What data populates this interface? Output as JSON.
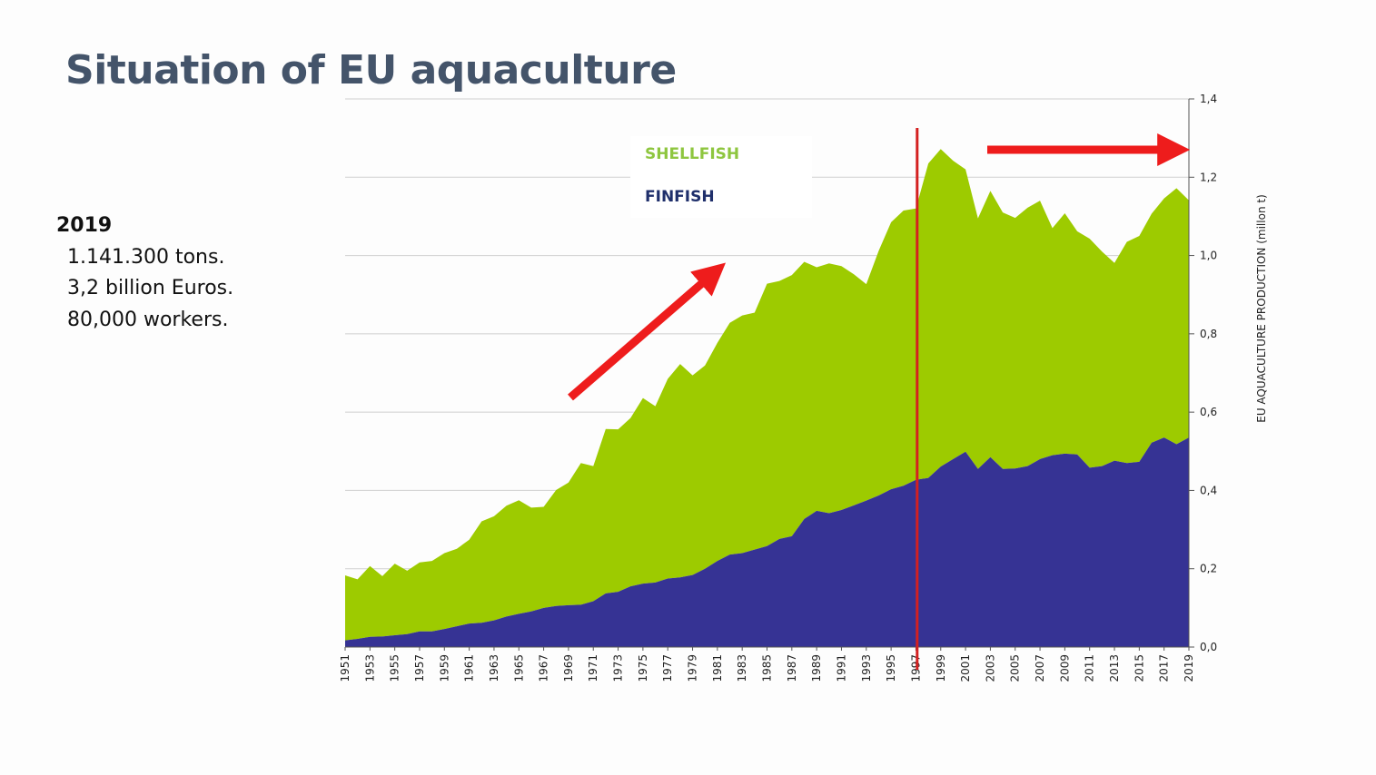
{
  "slide": {
    "title": "Situation of EU aquaculture"
  },
  "summary": {
    "year": "2019",
    "lines": [
      "1.141.300 tons.",
      "3,2 billion Euros.",
      "80,000 workers."
    ]
  },
  "colors": {
    "shellfish": "#9dcb00",
    "finfish": "#363394",
    "shellfish_label": "#8ec63f",
    "finfish_label": "#1f2f6b",
    "arrow": "#ee1c1c",
    "marker_line": "#d42020",
    "grid": "#d0d0d0"
  },
  "chart_data": {
    "type": "area",
    "stacked": true,
    "title": "",
    "xlabel": "",
    "ylabel": "EU AQUACULTURE PRODUCTION (millon t)",
    "ylim": [
      0,
      1.4
    ],
    "y_ticks": [
      "0,0",
      "0,2",
      "0,4",
      "0,6",
      "0,8",
      "1,0",
      "1,2",
      "1,4"
    ],
    "y_axis_side": "right",
    "grid": true,
    "x_tick_labels": [
      "1951",
      "1953",
      "1955",
      "1957",
      "1959",
      "1961",
      "1963",
      "1965",
      "1967",
      "1969",
      "1971",
      "1973",
      "1975",
      "1977",
      "1979",
      "1981",
      "1983",
      "1985",
      "1987",
      "1989",
      "1991",
      "1993",
      "1995",
      "1997",
      "1999",
      "2001",
      "2003",
      "2005",
      "2007",
      "2009",
      "2011",
      "2013",
      "2015",
      "2017",
      "2019"
    ],
    "x": [
      1951,
      1952,
      1953,
      1954,
      1955,
      1956,
      1957,
      1958,
      1959,
      1960,
      1961,
      1962,
      1963,
      1964,
      1965,
      1966,
      1967,
      1968,
      1969,
      1970,
      1971,
      1972,
      1973,
      1974,
      1975,
      1976,
      1977,
      1978,
      1979,
      1980,
      1981,
      1982,
      1983,
      1984,
      1985,
      1986,
      1987,
      1988,
      1989,
      1990,
      1991,
      1992,
      1993,
      1994,
      1995,
      1996,
      1997,
      1998,
      1999,
      2000,
      2001,
      2002,
      2003,
      2004,
      2005,
      2006,
      2007,
      2008,
      2009,
      2010,
      2011,
      2012,
      2013,
      2014,
      2015,
      2016,
      2017,
      2018,
      2019
    ],
    "series": [
      {
        "name": "FINFISH",
        "values": [
          0.017,
          0.021,
          0.026,
          0.027,
          0.03,
          0.033,
          0.04,
          0.04,
          0.046,
          0.053,
          0.06,
          0.062,
          0.068,
          0.078,
          0.085,
          0.091,
          0.1,
          0.105,
          0.107,
          0.108,
          0.117,
          0.137,
          0.141,
          0.155,
          0.162,
          0.165,
          0.175,
          0.178,
          0.184,
          0.2,
          0.22,
          0.236,
          0.24,
          0.249,
          0.258,
          0.276,
          0.283,
          0.327,
          0.348,
          0.342,
          0.35,
          0.362,
          0.374,
          0.387,
          0.403,
          0.412,
          0.427,
          0.432,
          0.461,
          0.48,
          0.499,
          0.455,
          0.485,
          0.455,
          0.456,
          0.462,
          0.48,
          0.49,
          0.494,
          0.492,
          0.458,
          0.462,
          0.476,
          0.47,
          0.473,
          0.522,
          0.535,
          0.518,
          0.535
        ]
      },
      {
        "name": "SHELLFISH",
        "values": [
          0.166,
          0.152,
          0.181,
          0.154,
          0.183,
          0.162,
          0.176,
          0.18,
          0.194,
          0.198,
          0.214,
          0.259,
          0.266,
          0.283,
          0.29,
          0.265,
          0.258,
          0.296,
          0.313,
          0.362,
          0.345,
          0.42,
          0.415,
          0.43,
          0.474,
          0.45,
          0.51,
          0.545,
          0.51,
          0.519,
          0.557,
          0.592,
          0.607,
          0.605,
          0.67,
          0.659,
          0.667,
          0.657,
          0.622,
          0.638,
          0.623,
          0.59,
          0.553,
          0.625,
          0.682,
          0.703,
          0.693,
          0.803,
          0.811,
          0.762,
          0.721,
          0.64,
          0.68,
          0.655,
          0.64,
          0.66,
          0.66,
          0.58,
          0.614,
          0.57,
          0.585,
          0.548,
          0.505,
          0.565,
          0.577,
          0.585,
          0.611,
          0.654,
          0.606
        ]
      }
    ],
    "annotations": {
      "vertical_marker_x": 1997.1,
      "arrows": [
        "rising-trend",
        "flat-trend"
      ]
    }
  }
}
